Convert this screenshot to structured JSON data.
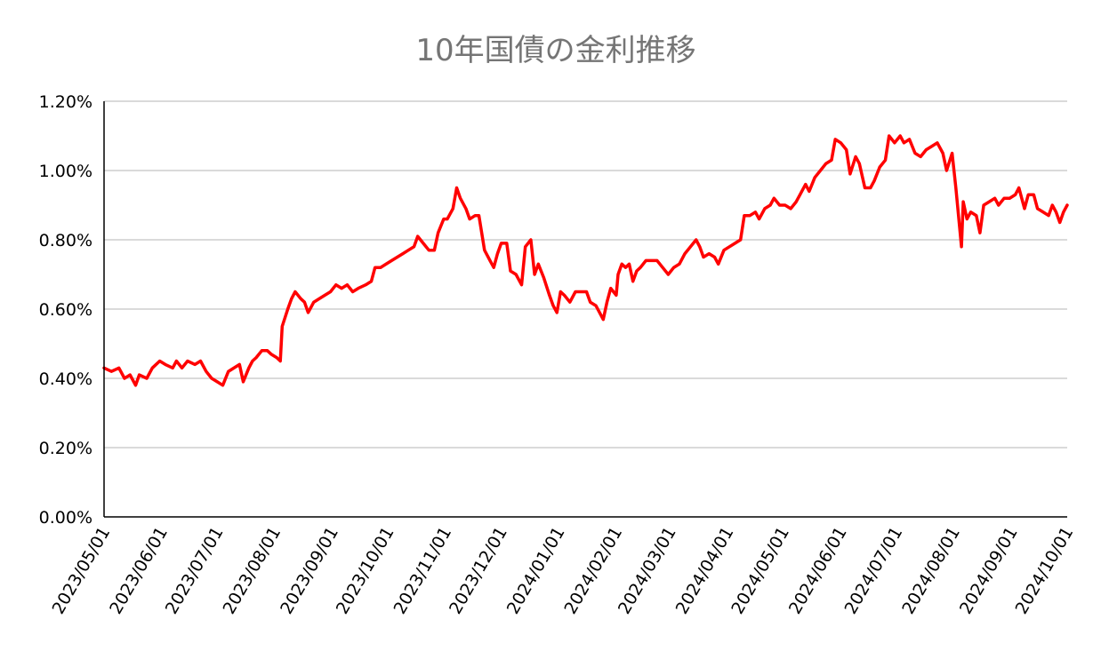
{
  "chart_data": {
    "type": "line",
    "title": "10年国債の金利推移",
    "xlabel": "",
    "ylabel": "",
    "x_ticks": [
      "2023/05/01",
      "2023/06/01",
      "2023/07/01",
      "2023/08/01",
      "2023/09/01",
      "2023/10/01",
      "2023/11/01",
      "2023/12/01",
      "2024/01/01",
      "2024/02/01",
      "2024/03/01",
      "2024/04/01",
      "2024/05/01",
      "2024/06/01",
      "2024/07/01",
      "2024/08/01",
      "2024/09/01",
      "2024/10/01"
    ],
    "y_ticks": [
      "0.00%",
      "0.20%",
      "0.40%",
      "0.60%",
      "0.80%",
      "1.00%",
      "1.20%"
    ],
    "ylim": [
      0,
      1.2
    ],
    "xlim": [
      "2023/05/01",
      "2024/10/01"
    ],
    "grid": "horizontal",
    "series": [
      {
        "color": "#ff0000",
        "points": [
          [
            "2023/05/01",
            0.43
          ],
          [
            "2023/05/05",
            0.42
          ],
          [
            "2023/05/09",
            0.43
          ],
          [
            "2023/05/12",
            0.4
          ],
          [
            "2023/05/15",
            0.41
          ],
          [
            "2023/05/18",
            0.38
          ],
          [
            "2023/05/20",
            0.41
          ],
          [
            "2023/05/24",
            0.4
          ],
          [
            "2023/05/27",
            0.43
          ],
          [
            "2023/05/31",
            0.45
          ],
          [
            "2023/06/03",
            0.44
          ],
          [
            "2023/06/07",
            0.43
          ],
          [
            "2023/06/09",
            0.45
          ],
          [
            "2023/06/12",
            0.43
          ],
          [
            "2023/06/15",
            0.45
          ],
          [
            "2023/06/19",
            0.44
          ],
          [
            "2023/06/22",
            0.45
          ],
          [
            "2023/06/25",
            0.42
          ],
          [
            "2023/06/28",
            0.4
          ],
          [
            "2023/07/01",
            0.39
          ],
          [
            "2023/07/04",
            0.38
          ],
          [
            "2023/07/07",
            0.42
          ],
          [
            "2023/07/10",
            0.43
          ],
          [
            "2023/07/13",
            0.44
          ],
          [
            "2023/07/15",
            0.39
          ],
          [
            "2023/07/18",
            0.43
          ],
          [
            "2023/07/20",
            0.45
          ],
          [
            "2023/07/22",
            0.46
          ],
          [
            "2023/07/25",
            0.48
          ],
          [
            "2023/07/28",
            0.48
          ],
          [
            "2023/07/30",
            0.47
          ],
          [
            "2023/08/02",
            0.46
          ],
          [
            "2023/08/04",
            0.45
          ],
          [
            "2023/08/05",
            0.55
          ],
          [
            "2023/08/08",
            0.6
          ],
          [
            "2023/08/10",
            0.63
          ],
          [
            "2023/08/12",
            0.65
          ],
          [
            "2023/08/15",
            0.63
          ],
          [
            "2023/08/17",
            0.62
          ],
          [
            "2023/08/19",
            0.59
          ],
          [
            "2023/08/22",
            0.62
          ],
          [
            "2023/08/25",
            0.63
          ],
          [
            "2023/08/28",
            0.64
          ],
          [
            "2023/08/31",
            0.65
          ],
          [
            "2023/09/03",
            0.67
          ],
          [
            "2023/09/06",
            0.66
          ],
          [
            "2023/09/09",
            0.67
          ],
          [
            "2023/09/12",
            0.65
          ],
          [
            "2023/09/15",
            0.66
          ],
          [
            "2023/09/19",
            0.67
          ],
          [
            "2023/09/22",
            0.68
          ],
          [
            "2023/09/24",
            0.72
          ],
          [
            "2023/09/27",
            0.72
          ],
          [
            "2023/09/30",
            0.73
          ],
          [
            "2023/10/03",
            0.74
          ],
          [
            "2023/10/06",
            0.75
          ],
          [
            "2023/10/09",
            0.76
          ],
          [
            "2023/10/12",
            0.77
          ],
          [
            "2023/10/15",
            0.78
          ],
          [
            "2023/10/17",
            0.81
          ],
          [
            "2023/10/20",
            0.79
          ],
          [
            "2023/10/23",
            0.77
          ],
          [
            "2023/10/26",
            0.77
          ],
          [
            "2023/10/28",
            0.82
          ],
          [
            "2023/10/31",
            0.86
          ],
          [
            "2023/11/02",
            0.86
          ],
          [
            "2023/11/05",
            0.89
          ],
          [
            "2023/11/07",
            0.95
          ],
          [
            "2023/11/09",
            0.92
          ],
          [
            "2023/11/12",
            0.89
          ],
          [
            "2023/11/14",
            0.86
          ],
          [
            "2023/11/17",
            0.87
          ],
          [
            "2023/11/19",
            0.87
          ],
          [
            "2023/11/22",
            0.77
          ],
          [
            "2023/11/25",
            0.74
          ],
          [
            "2023/11/27",
            0.72
          ],
          [
            "2023/11/29",
            0.76
          ],
          [
            "2023/12/01",
            0.79
          ],
          [
            "2023/12/04",
            0.79
          ],
          [
            "2023/12/06",
            0.71
          ],
          [
            "2023/12/09",
            0.7
          ],
          [
            "2023/12/12",
            0.67
          ],
          [
            "2023/12/14",
            0.78
          ],
          [
            "2023/12/17",
            0.8
          ],
          [
            "2023/12/19",
            0.7
          ],
          [
            "2023/12/21",
            0.73
          ],
          [
            "2023/12/24",
            0.69
          ],
          [
            "2023/12/27",
            0.64
          ],
          [
            "2023/12/29",
            0.61
          ],
          [
            "2023/12/31",
            0.59
          ],
          [
            "2024/01/02",
            0.65
          ],
          [
            "2024/01/04",
            0.64
          ],
          [
            "2024/01/07",
            0.62
          ],
          [
            "2024/01/10",
            0.65
          ],
          [
            "2024/01/13",
            0.65
          ],
          [
            "2024/01/16",
            0.65
          ],
          [
            "2024/01/18",
            0.62
          ],
          [
            "2024/01/21",
            0.61
          ],
          [
            "2024/01/23",
            0.59
          ],
          [
            "2024/01/25",
            0.57
          ],
          [
            "2024/01/27",
            0.62
          ],
          [
            "2024/01/29",
            0.66
          ],
          [
            "2024/02/01",
            0.64
          ],
          [
            "2024/02/02",
            0.7
          ],
          [
            "2024/02/04",
            0.73
          ],
          [
            "2024/02/06",
            0.72
          ],
          [
            "2024/02/08",
            0.73
          ],
          [
            "2024/02/10",
            0.68
          ],
          [
            "2024/02/12",
            0.71
          ],
          [
            "2024/02/14",
            0.72
          ],
          [
            "2024/02/17",
            0.74
          ],
          [
            "2024/02/20",
            0.74
          ],
          [
            "2024/02/23",
            0.74
          ],
          [
            "2024/02/26",
            0.72
          ],
          [
            "2024/02/29",
            0.7
          ],
          [
            "2024/03/03",
            0.72
          ],
          [
            "2024/03/06",
            0.73
          ],
          [
            "2024/03/09",
            0.76
          ],
          [
            "2024/03/12",
            0.78
          ],
          [
            "2024/03/15",
            0.8
          ],
          [
            "2024/03/17",
            0.78
          ],
          [
            "2024/03/19",
            0.75
          ],
          [
            "2024/03/22",
            0.76
          ],
          [
            "2024/03/25",
            0.75
          ],
          [
            "2024/03/27",
            0.73
          ],
          [
            "2024/03/30",
            0.77
          ],
          [
            "2024/04/02",
            0.78
          ],
          [
            "2024/04/05",
            0.79
          ],
          [
            "2024/04/08",
            0.8
          ],
          [
            "2024/04/10",
            0.87
          ],
          [
            "2024/04/13",
            0.87
          ],
          [
            "2024/04/16",
            0.88
          ],
          [
            "2024/04/18",
            0.86
          ],
          [
            "2024/04/21",
            0.89
          ],
          [
            "2024/04/24",
            0.9
          ],
          [
            "2024/04/26",
            0.92
          ],
          [
            "2024/04/29",
            0.9
          ],
          [
            "2024/05/02",
            0.9
          ],
          [
            "2024/05/05",
            0.89
          ],
          [
            "2024/05/08",
            0.91
          ],
          [
            "2024/05/10",
            0.93
          ],
          [
            "2024/05/13",
            0.96
          ],
          [
            "2024/05/15",
            0.94
          ],
          [
            "2024/05/18",
            0.98
          ],
          [
            "2024/05/21",
            1.0
          ],
          [
            "2024/05/24",
            1.02
          ],
          [
            "2024/05/27",
            1.03
          ],
          [
            "2024/05/29",
            1.09
          ],
          [
            "2024/06/01",
            1.08
          ],
          [
            "2024/06/04",
            1.06
          ],
          [
            "2024/06/06",
            0.99
          ],
          [
            "2024/06/09",
            1.04
          ],
          [
            "2024/06/11",
            1.02
          ],
          [
            "2024/06/14",
            0.95
          ],
          [
            "2024/06/17",
            0.95
          ],
          [
            "2024/06/19",
            0.97
          ],
          [
            "2024/06/22",
            1.01
          ],
          [
            "2024/06/25",
            1.03
          ],
          [
            "2024/06/27",
            1.1
          ],
          [
            "2024/06/30",
            1.08
          ],
          [
            "2024/07/03",
            1.1
          ],
          [
            "2024/07/05",
            1.08
          ],
          [
            "2024/07/08",
            1.09
          ],
          [
            "2024/07/11",
            1.05
          ],
          [
            "2024/07/14",
            1.04
          ],
          [
            "2024/07/17",
            1.06
          ],
          [
            "2024/07/20",
            1.07
          ],
          [
            "2024/07/23",
            1.08
          ],
          [
            "2024/07/26",
            1.05
          ],
          [
            "2024/07/28",
            1.0
          ],
          [
            "2024/07/31",
            1.05
          ],
          [
            "2024/08/02",
            0.95
          ],
          [
            "2024/08/05",
            0.78
          ],
          [
            "2024/08/06",
            0.91
          ],
          [
            "2024/08/08",
            0.86
          ],
          [
            "2024/08/10",
            0.88
          ],
          [
            "2024/08/13",
            0.87
          ],
          [
            "2024/08/15",
            0.82
          ],
          [
            "2024/08/17",
            0.9
          ],
          [
            "2024/08/20",
            0.91
          ],
          [
            "2024/08/23",
            0.92
          ],
          [
            "2024/08/25",
            0.9
          ],
          [
            "2024/08/28",
            0.92
          ],
          [
            "2024/08/31",
            0.92
          ],
          [
            "2024/09/03",
            0.93
          ],
          [
            "2024/09/05",
            0.95
          ],
          [
            "2024/09/08",
            0.89
          ],
          [
            "2024/09/10",
            0.93
          ],
          [
            "2024/09/13",
            0.93
          ],
          [
            "2024/09/15",
            0.89
          ],
          [
            "2024/09/18",
            0.88
          ],
          [
            "2024/09/21",
            0.87
          ],
          [
            "2024/09/23",
            0.9
          ],
          [
            "2024/09/25",
            0.88
          ],
          [
            "2024/09/27",
            0.85
          ],
          [
            "2024/09/29",
            0.88
          ],
          [
            "2024/10/01",
            0.9
          ]
        ]
      }
    ]
  }
}
